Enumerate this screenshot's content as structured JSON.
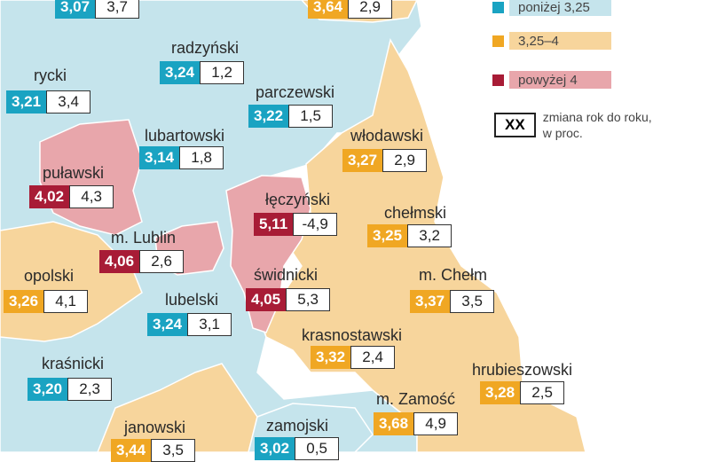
{
  "colors": {
    "blue_fill": "#c5e4ec",
    "orange_fill": "#f7d59c",
    "red_fill": "#e8a6ab",
    "blue_badge": "#1aa3c2",
    "orange_badge": "#f0a723",
    "red_badge": "#a81c36"
  },
  "legend": {
    "low_label": "poniżej 3,25",
    "mid_label": "3,25–4",
    "high_label": "powyżej 4",
    "xx_symbol": "XX",
    "xx_text_1": "zmiana rok do roku,",
    "xx_text_2": "w proc."
  },
  "counties": [
    {
      "name": "",
      "value": "3,07",
      "change": "3,7",
      "category": "blue"
    },
    {
      "name": "",
      "value": "3,64",
      "change": "2,9",
      "category": "orange"
    },
    {
      "name": "radzyński",
      "value": "3,24",
      "change": "1,2",
      "category": "blue"
    },
    {
      "name": "rycki",
      "value": "3,21",
      "change": "3,4",
      "category": "blue"
    },
    {
      "name": "parczewski",
      "value": "3,22",
      "change": "1,5",
      "category": "blue"
    },
    {
      "name": "lubartowski",
      "value": "3,14",
      "change": "1,8",
      "category": "blue"
    },
    {
      "name": "włodawski",
      "value": "3,27",
      "change": "2,9",
      "category": "orange"
    },
    {
      "name": "puławski",
      "value": "4,02",
      "change": "4,3",
      "category": "red"
    },
    {
      "name": "łęczyński",
      "value": "5,11",
      "change": "-4,9",
      "category": "red"
    },
    {
      "name": "chełmski",
      "value": "3,25",
      "change": "3,2",
      "category": "orange"
    },
    {
      "name": "m. Lublin",
      "value": "4,06",
      "change": "2,6",
      "category": "red"
    },
    {
      "name": "opolski",
      "value": "3,26",
      "change": "4,1",
      "category": "orange"
    },
    {
      "name": "świdnicki",
      "value": "4,05",
      "change": "5,3",
      "category": "red"
    },
    {
      "name": "m. Chełm",
      "value": "3,37",
      "change": "3,5",
      "category": "orange"
    },
    {
      "name": "lubelski",
      "value": "3,24",
      "change": "3,1",
      "category": "blue"
    },
    {
      "name": "krasnostawski",
      "value": "3,32",
      "change": "2,4",
      "category": "orange"
    },
    {
      "name": "kraśnicki",
      "value": "3,20",
      "change": "2,3",
      "category": "blue"
    },
    {
      "name": "hrubieszowski",
      "value": "3,28",
      "change": "2,5",
      "category": "orange"
    },
    {
      "name": "m. Zamość",
      "value": "3,68",
      "change": "4,9",
      "category": "orange"
    },
    {
      "name": "janowski",
      "value": "3,44",
      "change": "3,5",
      "category": "orange"
    },
    {
      "name": "zamojski",
      "value": "3,02",
      "change": "0,5",
      "category": "blue"
    }
  ]
}
